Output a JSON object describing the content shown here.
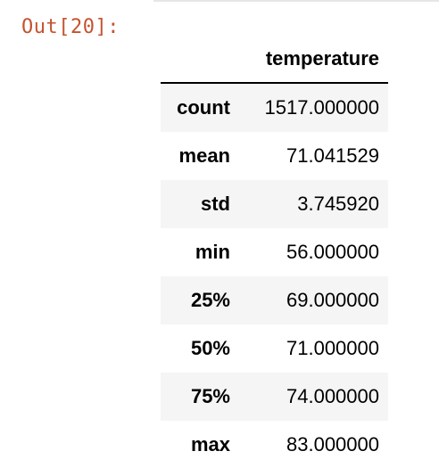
{
  "output_prompt": "Out[20]:",
  "table": {
    "index_header": "",
    "column_header": "temperature",
    "rows": [
      {
        "label": "count",
        "value": "1517.000000"
      },
      {
        "label": "mean",
        "value": "71.041529"
      },
      {
        "label": "std",
        "value": "3.745920"
      },
      {
        "label": "min",
        "value": "56.000000"
      },
      {
        "label": "25%",
        "value": "69.000000"
      },
      {
        "label": "50%",
        "value": "71.000000"
      },
      {
        "label": "75%",
        "value": "74.000000"
      },
      {
        "label": "max",
        "value": "83.000000"
      }
    ]
  },
  "colors": {
    "prompt": "#c4532f",
    "row_stripe": "#f5f5f5",
    "text": "#000000"
  }
}
